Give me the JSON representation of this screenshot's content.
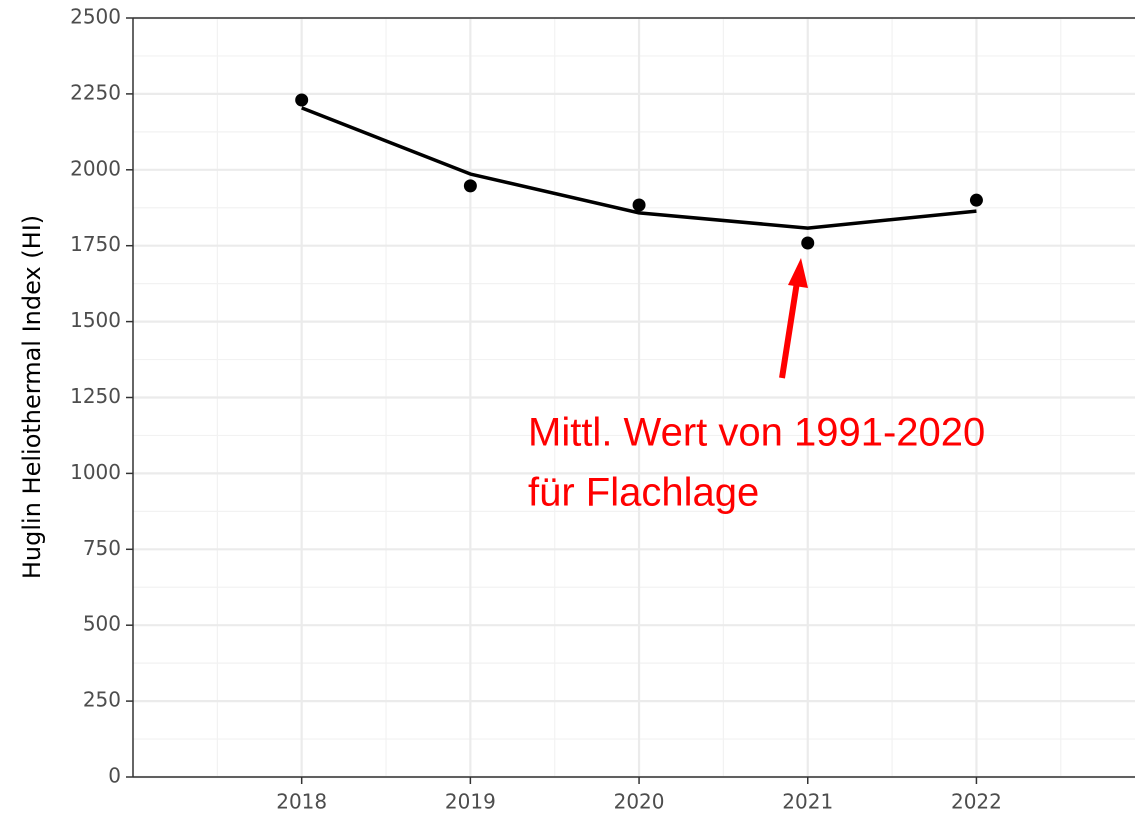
{
  "chart_data": {
    "type": "line",
    "ylabel": "Huglin Heliothermal Index (HI)",
    "x": [
      2018,
      2019,
      2020,
      2021,
      2022
    ],
    "series": [
      {
        "style": "points",
        "color": "#000000",
        "values": [
          2230,
          1947,
          1884,
          1759,
          1900
        ]
      },
      {
        "style": "line",
        "color": "#000000",
        "values": [
          2204,
          1986,
          1858,
          1808,
          1864
        ]
      }
    ],
    "xlim": [
      2017,
      2022.94
    ],
    "xticks": [
      2018,
      2019,
      2020,
      2021,
      2022
    ],
    "ylim": [
      0,
      2500
    ],
    "yticks": [
      0,
      250,
      500,
      750,
      1000,
      1250,
      1500,
      1750,
      2000,
      2250,
      2500
    ],
    "grid": true,
    "minor_grid": true,
    "annotation": {
      "lines": [
        "Mittl. Wert von 1991-2020",
        "für Flachlage"
      ],
      "color": "#ff0000"
    }
  }
}
